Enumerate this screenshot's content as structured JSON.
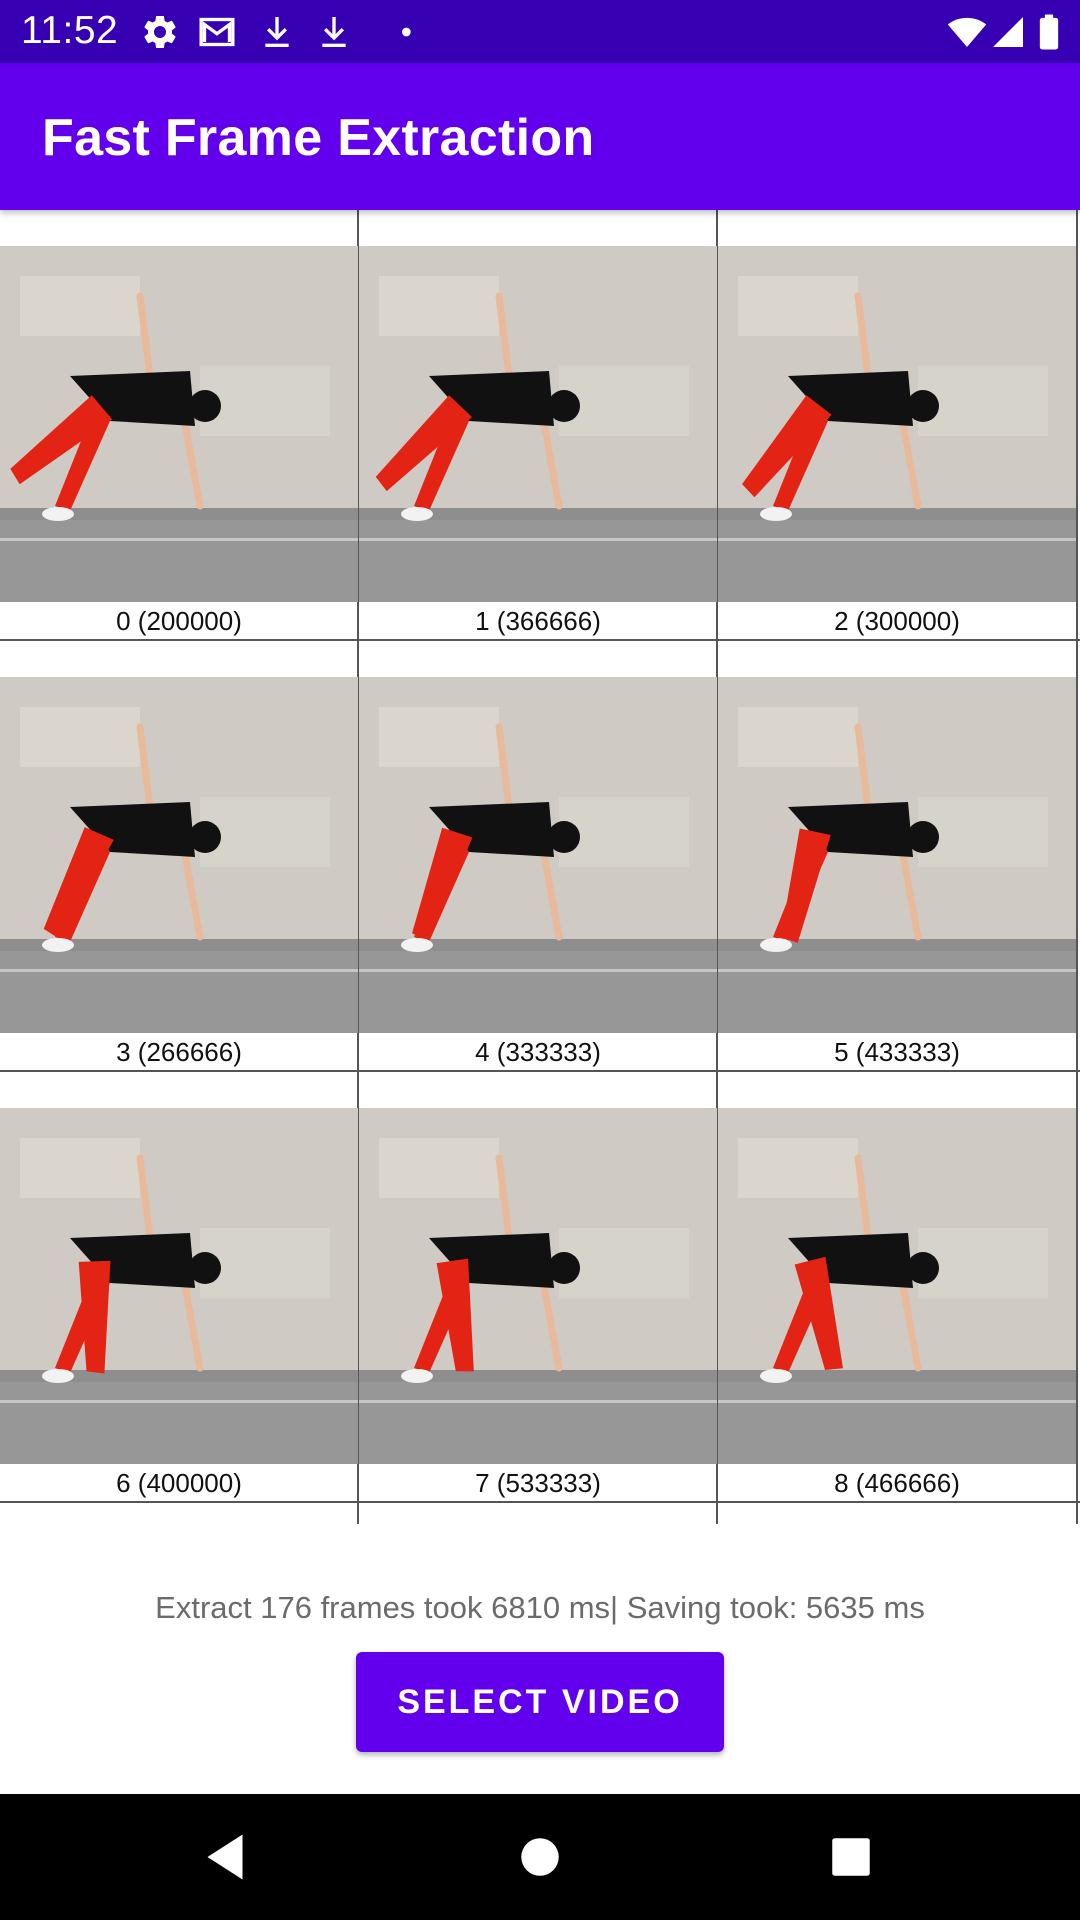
{
  "status_bar": {
    "time": "11:52",
    "left_icons": [
      "gear-icon",
      "gmail-icon",
      "download-icon",
      "download-icon",
      "dot-icon"
    ],
    "right_icons": [
      "wifi-icon",
      "signal-icon",
      "battery-icon"
    ]
  },
  "app_bar": {
    "title": "Fast Frame Extraction"
  },
  "frames": [
    {
      "label": "0 (200000)"
    },
    {
      "label": "1 (366666)"
    },
    {
      "label": "2 (300000)"
    },
    {
      "label": "3 (266666)"
    },
    {
      "label": "4 (333333)"
    },
    {
      "label": "5 (433333)"
    },
    {
      "label": "6 (400000)"
    },
    {
      "label": "7 (533333)"
    },
    {
      "label": "8 (466666)"
    }
  ],
  "footer": {
    "stats": "Extract 176 frames took 6810 ms| Saving took: 5635 ms",
    "select_button": "SELECT VIDEO"
  },
  "nav_bar": {
    "buttons": [
      "back-icon",
      "home-icon",
      "recents-icon"
    ]
  },
  "colors": {
    "status_bar": "#3700B3",
    "primary": "#6200EE",
    "stats_text": "#6b6b6b"
  }
}
